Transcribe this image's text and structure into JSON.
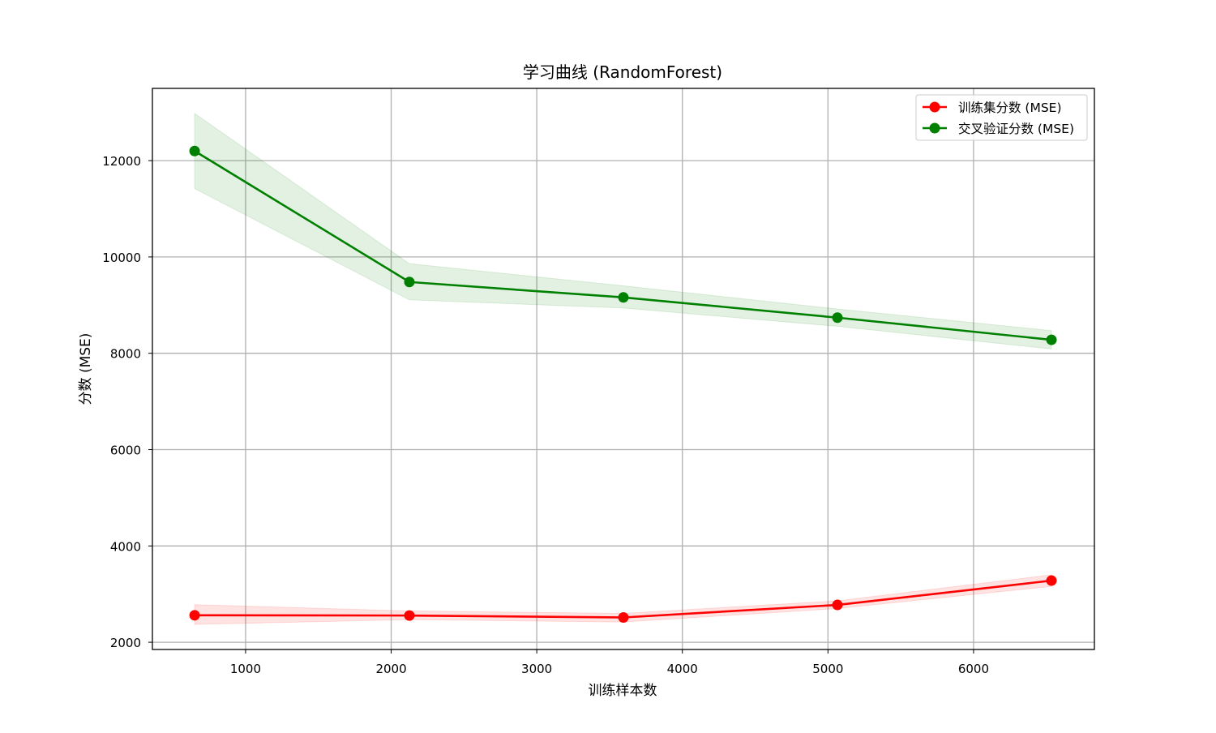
{
  "chart_data": {
    "type": "line",
    "title": "学习曲线 (RandomForest)",
    "xlabel": "训练样本数",
    "ylabel": "分数 (MSE)",
    "x": [
      650,
      2125,
      3595,
      5065,
      6535
    ],
    "xlim": [
      360,
      6830
    ],
    "ylim": [
      1850,
      13500
    ],
    "xticks": [
      1000,
      2000,
      3000,
      4000,
      5000,
      6000
    ],
    "yticks": [
      2000,
      4000,
      6000,
      8000,
      10000,
      12000
    ],
    "grid": true,
    "legend_position": "upper right",
    "series": [
      {
        "name": "训练集分数 (MSE)",
        "color": "#ff0000",
        "values": [
          2560,
          2555,
          2515,
          2775,
          3280
        ],
        "lower": [
          2370,
          2470,
          2420,
          2700,
          3160
        ],
        "upper": [
          2780,
          2650,
          2600,
          2860,
          3400
        ]
      },
      {
        "name": "交叉验证分数 (MSE)",
        "color": "#008000",
        "values": [
          12200,
          9480,
          9160,
          8740,
          8280
        ],
        "lower": [
          11420,
          9110,
          8940,
          8560,
          8090
        ],
        "upper": [
          12980,
          9860,
          9400,
          8920,
          8470
        ]
      }
    ]
  }
}
